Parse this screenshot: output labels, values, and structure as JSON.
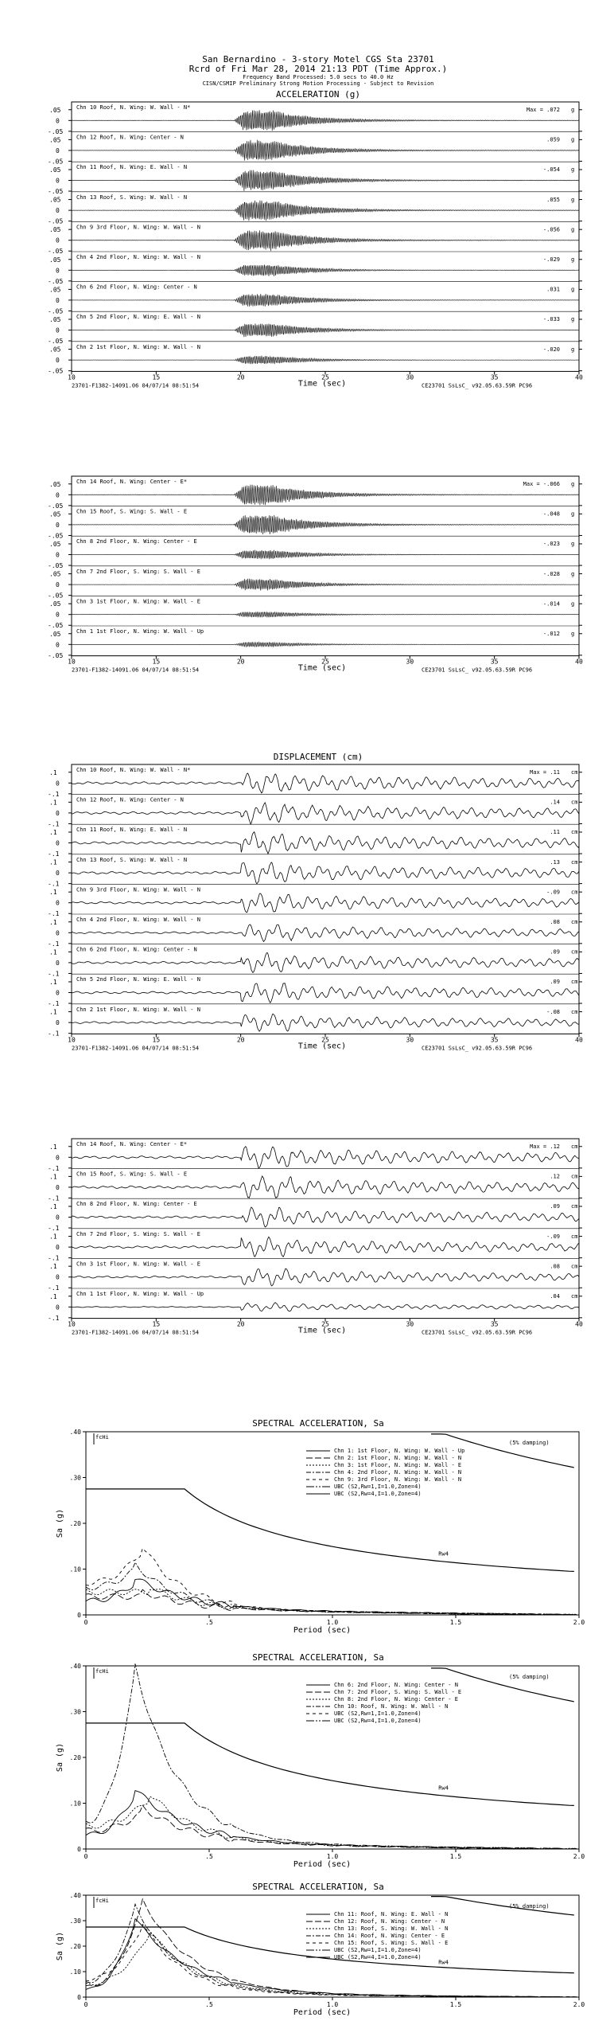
{
  "header": {
    "line1": "San Bernardino - 3-story Motel       CGS Sta 23701",
    "line2": "Rcrd of Fri Mar 28, 2014 21:13 PDT (Time Approx.)",
    "line3": "Frequency Band Processed: 5.0 secs to 40.0 Hz",
    "line4": "CISN/CSMIP Preliminary Strong Motion Processing - Subject to Revision"
  },
  "footer": {
    "left": "23701-F1382-14091.06 04/07/14 08:51:54",
    "right": "CE23701  SsLsC_  v92.05.63.59R PC96"
  },
  "time_axis": {
    "label": "Time (sec)",
    "ticks": [
      "10",
      "15",
      "20",
      "25",
      "30",
      "35",
      "40"
    ]
  },
  "charts": [
    {
      "id": "acc1",
      "title": "ACCELERATION (g)",
      "unit": "g",
      "ylim": [
        -0.05,
        0.05
      ],
      "yticks": [
        ".05",
        "0",
        "-.05"
      ],
      "channels": [
        {
          "label": "Chn 10  Roof, N. Wing: W. Wall - N*",
          "max": "Max =  .072",
          "peak": 0.072
        },
        {
          "label": "Chn 12  Roof, N. Wing: Center - N",
          "max": ".059",
          "peak": 0.059
        },
        {
          "label": "Chn 11  Roof, N. Wing: E. Wall - N",
          "max": "-.054",
          "peak": 0.054
        },
        {
          "label": "Chn 13  Roof, S. Wing: W. Wall - N",
          "max": ".055",
          "peak": 0.055
        },
        {
          "label": "Chn 9  3rd Floor, N. Wing: W. Wall - N",
          "max": "-.056",
          "peak": 0.056
        },
        {
          "label": "Chn 4  2nd Floor, N. Wing: W. Wall - N",
          "max": "-.029",
          "peak": 0.029
        },
        {
          "label": "Chn 6  2nd Floor, N. Wing: Center - N",
          "max": ".031",
          "peak": 0.031
        },
        {
          "label": "Chn 5  2nd Floor, N. Wing: E. Wall - N",
          "max": "-.033",
          "peak": 0.033
        },
        {
          "label": "Chn 2  1st Floor, N. Wing: W. Wall - N",
          "max": "-.020",
          "peak": 0.02
        }
      ]
    },
    {
      "id": "acc2",
      "title": "",
      "unit": "g",
      "ylim": [
        -0.05,
        0.05
      ],
      "yticks": [
        ".05",
        "0",
        "-.05"
      ],
      "channels": [
        {
          "label": "Chn 14  Roof, N. Wing: Center - E*",
          "max": "Max = -.066",
          "peak": 0.066
        },
        {
          "label": "Chn 15  Roof, S. Wing: S. Wall - E",
          "max": "-.048",
          "peak": 0.048
        },
        {
          "label": "Chn 8  2nd Floor, N. Wing: Center - E",
          "max": "-.023",
          "peak": 0.023
        },
        {
          "label": "Chn 7  2nd Floor, S. Wing: S. Wall - E",
          "max": "-.028",
          "peak": 0.028
        },
        {
          "label": "Chn 3  1st Floor, N. Wing: W. Wall - E",
          "max": "-.014",
          "peak": 0.014
        },
        {
          "label": "Chn 1  1st Floor, N. Wing: W. Wall - Up",
          "max": "-.012",
          "peak": 0.012
        }
      ]
    },
    {
      "id": "dsp1",
      "title": "DISPLACEMENT (cm)",
      "unit": "cm",
      "ylim": [
        -0.1,
        0.1
      ],
      "yticks": [
        ".1",
        "0",
        "-.1"
      ],
      "channels": [
        {
          "label": "Chn 10  Roof, N. Wing: W. Wall - N*",
          "max": "Max =  .11",
          "peak": 0.11
        },
        {
          "label": "Chn 12  Roof, N. Wing: Center - N",
          "max": ".14",
          "peak": 0.14
        },
        {
          "label": "Chn 11  Roof, N. Wing: E. Wall - N",
          "max": ".11",
          "peak": 0.11
        },
        {
          "label": "Chn 13  Roof, S. Wing: W. Wall - N",
          "max": ".13",
          "peak": 0.13
        },
        {
          "label": "Chn 9  3rd Floor, N. Wing: W. Wall - N",
          "max": "-.09",
          "peak": 0.09
        },
        {
          "label": "Chn 4  2nd Floor, N. Wing: W. Wall - N",
          "max": ".08",
          "peak": 0.08
        },
        {
          "label": "Chn 6  2nd Floor, N. Wing: Center - N",
          "max": ".09",
          "peak": 0.09
        },
        {
          "label": "Chn 5  2nd Floor, N. Wing: E. Wall - N",
          "max": ".09",
          "peak": 0.09
        },
        {
          "label": "Chn 2  1st Floor, N. Wing: W. Wall - N",
          "max": "-.08",
          "peak": 0.08
        }
      ]
    },
    {
      "id": "dsp2",
      "title": "",
      "unit": "cm",
      "ylim": [
        -0.1,
        0.1
      ],
      "yticks": [
        ".1",
        "0",
        "-.1"
      ],
      "channels": [
        {
          "label": "Chn 14  Roof, N. Wing: Center - E*",
          "max": "Max =  .12",
          "peak": 0.12
        },
        {
          "label": "Chn 15  Roof, S. Wing: S. Wall - E",
          "max": ".12",
          "peak": 0.12
        },
        {
          "label": "Chn 8  2nd Floor, N. Wing: Center - E",
          "max": ".09",
          "peak": 0.09
        },
        {
          "label": "Chn 7  2nd Floor, S. Wing: S. Wall - E",
          "max": "-.09",
          "peak": 0.09
        },
        {
          "label": "Chn 3  1st Floor, N. Wing: W. Wall - E",
          "max": ".08",
          "peak": 0.08
        },
        {
          "label": "Chn 1  1st Floor, N. Wing: W. Wall - Up",
          "max": ".04",
          "peak": 0.04
        }
      ]
    }
  ],
  "spectra": [
    {
      "id": "sa1",
      "title": "SPECTRAL ACCELERATION, Sa",
      "damping": "(5% damping)",
      "fchi": "fcHi",
      "xlabel": "Period (sec)",
      "ylabel": "Sa (g)",
      "xticks": [
        "0",
        ".5",
        "1.0",
        "1.5",
        "2.0"
      ],
      "yticks": [
        ".40",
        ".30",
        ".20",
        ".10",
        "0"
      ],
      "rw_label": "Rw4",
      "legend": [
        "Chn 1: 1st Floor, N. Wing: W. Wall - Up",
        "Chn 2: 1st Floor, N. Wing: W. Wall - N",
        "Chn 3: 1st Floor, N. Wing: W. Wall - E",
        "Chn 4: 2nd Floor, N. Wing: W. Wall - N",
        "Chn 9: 3rd Floor, N. Wing: W. Wall - N",
        "UBC (S2,Rw=1,I=1.0,Zone=4)",
        "UBC (S2,Rw=4,I=1.0,Zone=4)"
      ],
      "peaks": [
        0.07,
        0.04,
        0.05,
        0.1,
        0.14
      ]
    },
    {
      "id": "sa2",
      "title": "SPECTRAL ACCELERATION, Sa",
      "damping": "(5% damping)",
      "fchi": "fcHi",
      "xlabel": "Period (sec)",
      "ylabel": "Sa (g)",
      "xticks": [
        "0",
        ".5",
        "1.0",
        "1.5",
        "2.0"
      ],
      "yticks": [
        ".40",
        ".30",
        ".20",
        ".10",
        "0"
      ],
      "rw_label": "Rw4",
      "legend": [
        "Chn 6: 2nd Floor, N. Wing: Center - N",
        "Chn 7: 2nd Floor, S. Wing: S. Wall - E",
        "Chn 8: 2nd Floor, N. Wing: Center - E",
        "Chn 10: Roof, N. Wing: W. Wall - N",
        "UBC (S2,Rw=1,I=1.0,Zone=4)",
        "UBC (S2,Rw=4,I=1.0,Zone=4)"
      ],
      "peaks": [
        0.12,
        0.08,
        0.11,
        0.39
      ]
    },
    {
      "id": "sa3",
      "title": "SPECTRAL ACCELERATION, Sa",
      "damping": "(5% damping)",
      "fchi": "fcHi",
      "xlabel": "Period (sec)",
      "ylabel": "Sa (g)",
      "xticks": [
        "0",
        ".5",
        "1.0",
        "1.5",
        "2.0"
      ],
      "yticks": [
        ".40",
        ".30",
        ".20",
        ".10",
        "0"
      ],
      "rw_label": "Rw4",
      "legend": [
        "Chn 11: Roof, N. Wing: E. Wall - N",
        "Chn 12: Roof, N. Wing: Center - N",
        "Chn 13: Roof, S. Wing: W. Wall - N",
        "Chn 14: Roof, N. Wing: Center - E",
        "Chn 15: Roof, S. Wing: S. Wall - E",
        "UBC (S2,Rw=1,I=1.0,Zone=4)",
        "UBC (S2,Rw=4,I=1.0,Zone=4)"
      ],
      "peaks": [
        0.3,
        0.37,
        0.25,
        0.35,
        0.28
      ]
    }
  ]
}
